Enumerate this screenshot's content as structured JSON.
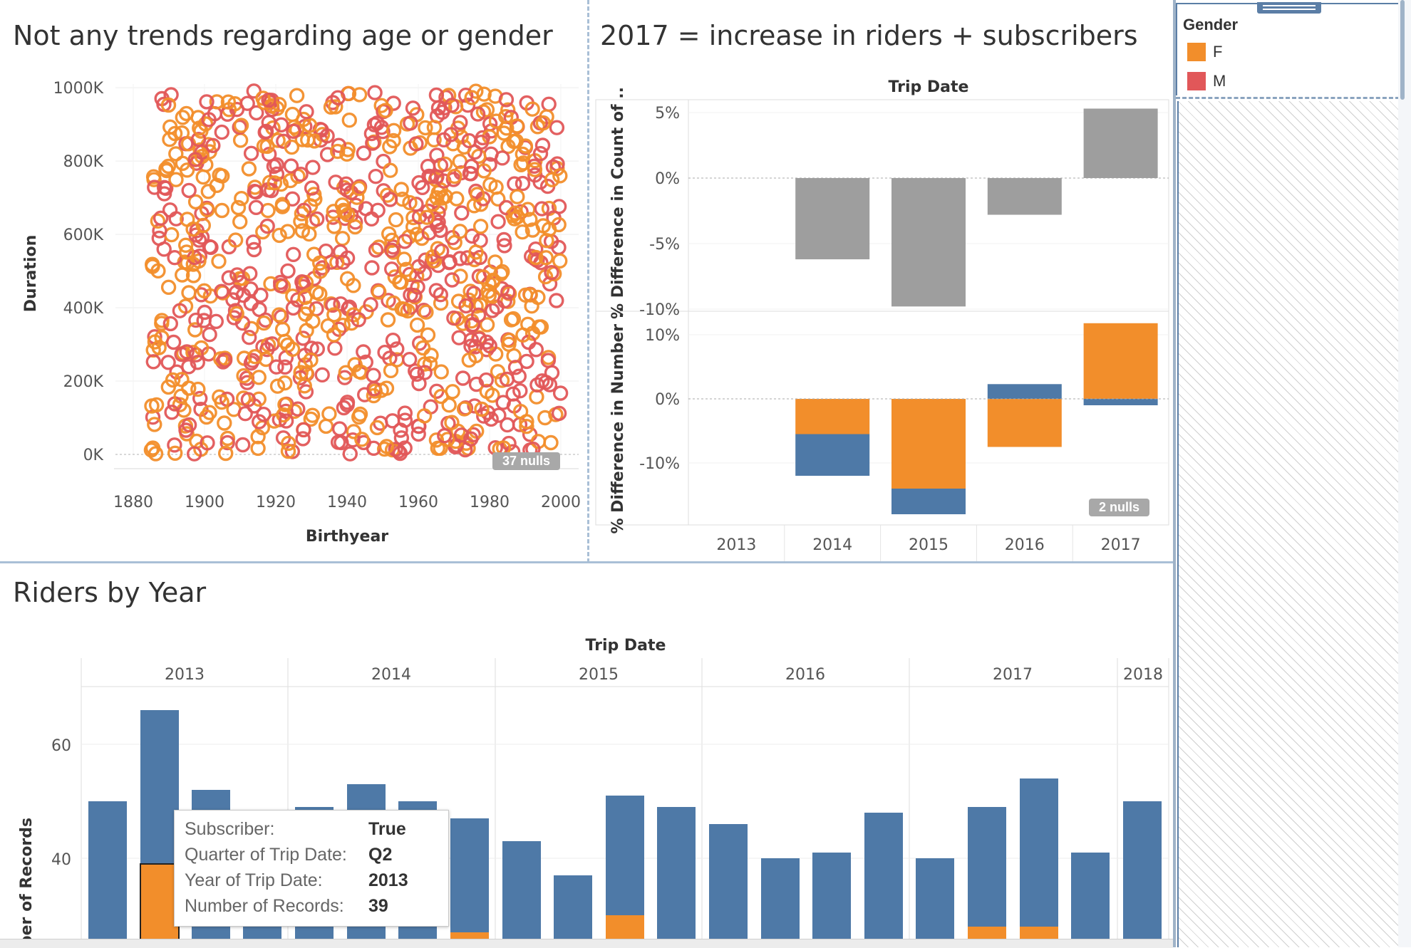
{
  "colors": {
    "female": "#f28e2b",
    "male": "#e15759",
    "subscriber": "#4e79a7",
    "gray_bar": "#9e9e9e"
  },
  "scatter": {
    "title": "Not any trends regarding age or gender",
    "xlabel": "Birthyear",
    "ylabel": "Duration",
    "xticks": [
      "1880",
      "1900",
      "1920",
      "1940",
      "1960",
      "1980",
      "2000"
    ],
    "yticks": [
      "1000K",
      "800K",
      "600K",
      "400K",
      "200K",
      "0K"
    ],
    "nulls": "37 nulls"
  },
  "changes": {
    "title": "2017 = increase in riders + subscribers",
    "header": "Trip Date",
    "top_ylabel": "% Difference in Count of ..",
    "bottom_ylabel": "% Difference in Number ..",
    "top_yticks": [
      "5%",
      "0%",
      "-5%",
      "-10%"
    ],
    "bottom_yticks": [
      "10%",
      "0%",
      "-10%"
    ],
    "years": [
      "2013",
      "2014",
      "2015",
      "2016",
      "2017"
    ],
    "nulls": "2 nulls"
  },
  "riders": {
    "title": "Riders by Year",
    "header": "Trip Date",
    "ylabel": "Number of Records",
    "years": [
      "2013",
      "2014",
      "2015",
      "2016",
      "2017",
      "2018"
    ],
    "yticks": [
      "60",
      "40"
    ]
  },
  "legend": {
    "title": "Gender",
    "items": [
      {
        "label": "F",
        "color": "#f28e2b"
      },
      {
        "label": "M",
        "color": "#e15759"
      }
    ]
  },
  "tooltip": {
    "rows": [
      {
        "key": "Subscriber:",
        "value": "True"
      },
      {
        "key": "Quarter of Trip Date:",
        "value": "Q2"
      },
      {
        "key": "Year of Trip Date:",
        "value": "2013"
      },
      {
        "key": "Number of Records:",
        "value": "39"
      }
    ]
  },
  "chart_data": [
    {
      "type": "scatter",
      "title": "Not any trends regarding age or gender",
      "xlabel": "Birthyear",
      "ylabel": "Duration",
      "xlim": [
        1875,
        2005
      ],
      "ylim": [
        0,
        1010000
      ],
      "series": [
        {
          "name": "F"
        },
        {
          "name": "M"
        }
      ],
      "note": "approx. 900 points uniformly spread over birthyears 1885-2000 and durations 0-1,000,000 with no visible trend"
    },
    {
      "type": "bar",
      "title": "2017 = increase in riders + subscribers",
      "categories": [
        "2013",
        "2014",
        "2015",
        "2016",
        "2017"
      ],
      "ylabel": "% Difference in Count of ..",
      "ylim": [
        -10,
        5
      ],
      "values": [
        null,
        -6.2,
        -9.8,
        -2.8,
        5.3
      ]
    },
    {
      "type": "bar",
      "categories": [
        "2013",
        "2014",
        "2015",
        "2016",
        "2017"
      ],
      "ylabel": "% Difference in Number ..",
      "ylim": [
        -18,
        12
      ],
      "series": [
        {
          "name": "F",
          "values": [
            null,
            -5.5,
            -14.0,
            -7.5,
            11.8
          ]
        },
        {
          "name": "True",
          "values": [
            null,
            -6.5,
            -4.0,
            2.3,
            -1.0
          ]
        }
      ]
    },
    {
      "type": "bar",
      "title": "Riders by Year",
      "xlabel": "Trip Date",
      "ylabel": "Number of Records",
      "categories": [
        "2013 Q1",
        "2013 Q2",
        "2013 Q3",
        "2013 Q4",
        "2014 Q1",
        "2014 Q2",
        "2014 Q3",
        "2014 Q4",
        "2015 Q1",
        "2015 Q2",
        "2015 Q3",
        "2015 Q4",
        "2016 Q1",
        "2016 Q2",
        "2016 Q3",
        "2016 Q4",
        "2017 Q1",
        "2017 Q2",
        "2017 Q3",
        "2017 Q4",
        "2018 Q1"
      ],
      "series": [
        {
          "name": "True",
          "values": [
            50,
            66,
            52,
            28,
            49,
            53,
            50,
            47,
            43,
            37,
            51,
            49,
            46,
            40,
            41,
            48,
            40,
            49,
            54,
            41,
            50
          ]
        },
        {
          "name": "F",
          "values": [
            0,
            39,
            0,
            0,
            0,
            0,
            0,
            27,
            0,
            0,
            30,
            0,
            0,
            0,
            0,
            0,
            0,
            28,
            28,
            0,
            0
          ]
        }
      ]
    }
  ]
}
